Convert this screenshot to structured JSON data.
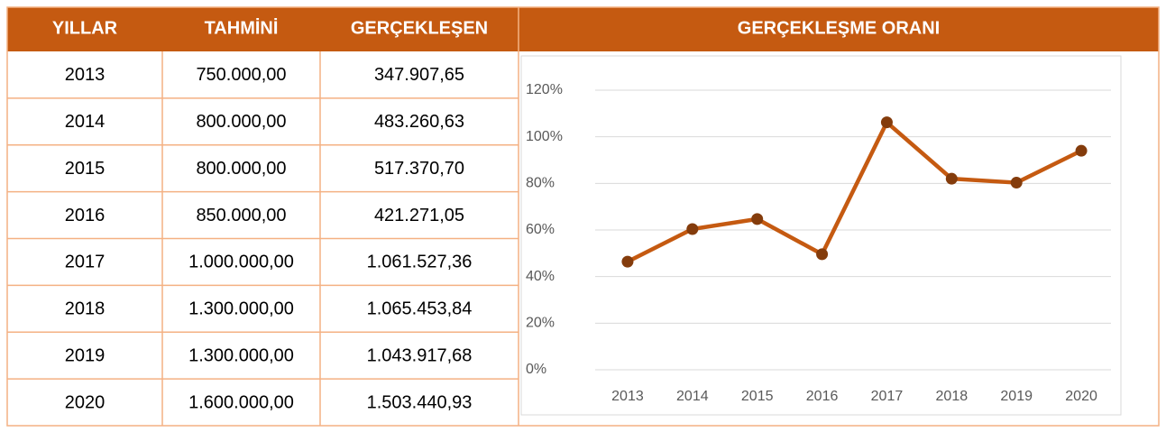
{
  "table": {
    "header": [
      "YILLAR",
      "TAHMİNİ",
      "GERÇEKLEŞEN"
    ],
    "rows": [
      [
        "2013",
        "750.000,00",
        "347.907,65"
      ],
      [
        "2014",
        "800.000,00",
        "483.260,63"
      ],
      [
        "2015",
        "800.000,00",
        "517.370,70"
      ],
      [
        "2016",
        "850.000,00",
        "421.271,05"
      ],
      [
        "2017",
        "1.000.000,00",
        "1.061.527,36"
      ],
      [
        "2018",
        "1.300.000,00",
        "1.065.453,84"
      ],
      [
        "2019",
        "1.300.000,00",
        "1.043.917,68"
      ],
      [
        "2020",
        "1.600.000,00",
        "1.503.440,93"
      ]
    ]
  },
  "chart_data": {
    "type": "line",
    "title": "GERÇEKLEŞME ORANI",
    "categories": [
      "2013",
      "2014",
      "2015",
      "2016",
      "2017",
      "2018",
      "2019",
      "2020"
    ],
    "series": [
      {
        "color": "#c55a11",
        "values": [
          46.4,
          60.4,
          64.7,
          49.6,
          106.2,
          82.0,
          80.3,
          94.0
        ]
      }
    ],
    "ylim": [
      0,
      120
    ],
    "yticks": [
      {
        "value": 0,
        "label": "0%"
      },
      {
        "value": 20,
        "label": "20%"
      },
      {
        "value": 40,
        "label": "40%"
      },
      {
        "value": 60,
        "label": "60%"
      },
      {
        "value": 80,
        "label": "80%"
      },
      {
        "value": 100,
        "label": "100%"
      },
      {
        "value": 120,
        "label": "120%"
      }
    ],
    "grid": true
  }
}
